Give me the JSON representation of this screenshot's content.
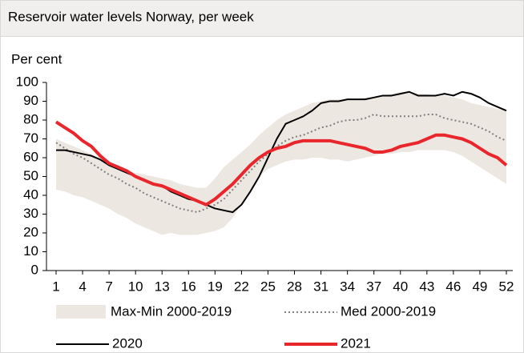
{
  "chart_data": {
    "type": "line",
    "title": "Reservoir water levels Norway, per week",
    "y_label": "Per cent",
    "x": [
      1,
      2,
      3,
      4,
      5,
      6,
      7,
      8,
      9,
      10,
      11,
      12,
      13,
      14,
      15,
      16,
      17,
      18,
      19,
      20,
      21,
      22,
      23,
      24,
      25,
      26,
      27,
      28,
      29,
      30,
      31,
      32,
      33,
      34,
      35,
      36,
      37,
      38,
      39,
      40,
      41,
      42,
      43,
      44,
      45,
      46,
      47,
      48,
      49,
      50,
      51,
      52
    ],
    "xlim": [
      1,
      52
    ],
    "xticks": [
      1,
      4,
      7,
      10,
      13,
      16,
      19,
      22,
      25,
      28,
      31,
      34,
      37,
      40,
      43,
      46,
      49,
      52
    ],
    "ylim": [
      0,
      100
    ],
    "yticks": [
      0,
      10,
      20,
      30,
      40,
      50,
      60,
      70,
      80,
      90,
      100
    ],
    "band": {
      "name": "Max-Min 2000-2019",
      "color": "#ede7e1",
      "max": [
        70,
        68,
        66,
        64,
        62,
        59,
        57,
        55,
        53,
        52,
        51,
        50,
        49,
        48,
        46,
        45,
        44,
        44,
        49,
        55,
        59,
        63,
        67,
        72,
        76,
        80,
        83,
        85,
        87,
        89,
        90,
        91,
        91,
        91,
        91,
        92,
        92,
        93,
        94,
        95,
        95,
        94,
        94,
        93,
        93,
        92,
        91,
        89,
        88,
        87,
        86,
        85
      ],
      "min": [
        43,
        42,
        40,
        39,
        37,
        35,
        33,
        30,
        28,
        25,
        23,
        21,
        19,
        20,
        19,
        19,
        19,
        20,
        21,
        23,
        28,
        35,
        42,
        50,
        54,
        56,
        58,
        59,
        59,
        60,
        60,
        59,
        59,
        58,
        59,
        60,
        61,
        62,
        62,
        63,
        63,
        64,
        64,
        64,
        64,
        63,
        61,
        58,
        55,
        52,
        49,
        46
      ]
    },
    "series": [
      {
        "name": "Med 2000-2019",
        "color": "#7f7f7f",
        "dash": "dotted",
        "values": [
          68,
          65,
          62,
          60,
          57,
          54,
          51,
          49,
          46,
          44,
          41,
          39,
          37,
          35,
          33,
          32,
          31,
          33,
          35,
          38,
          43,
          48,
          53,
          58,
          62,
          66,
          69,
          71,
          72,
          74,
          76,
          77,
          79,
          80,
          80,
          81,
          83,
          82,
          82,
          82,
          82,
          82,
          83,
          83,
          81,
          80,
          79,
          78,
          76,
          74,
          71,
          69
        ]
      },
      {
        "name": "2020",
        "color": "#000000",
        "values": [
          64,
          64,
          63,
          62,
          61,
          59,
          56,
          54,
          52,
          50,
          48,
          46,
          45,
          42,
          40,
          38,
          37,
          35,
          33,
          32,
          31,
          35,
          42,
          50,
          60,
          70,
          78,
          80,
          82,
          85,
          89,
          90,
          90,
          91,
          91,
          91,
          92,
          93,
          93,
          94,
          95,
          93,
          93,
          93,
          94,
          93,
          95,
          94,
          92,
          89,
          87,
          85
        ]
      },
      {
        "name": "2021",
        "color": "#e8262b",
        "values": [
          79,
          76,
          73,
          69,
          66,
          61,
          57,
          55,
          53,
          50,
          48,
          46,
          45,
          43,
          41,
          39,
          37,
          35,
          38,
          42,
          46,
          51,
          56,
          60,
          63,
          65,
          66,
          68,
          69,
          69,
          69,
          69,
          68,
          67,
          66,
          65,
          63,
          63,
          64,
          66,
          67,
          68,
          70,
          72,
          72,
          71,
          70,
          68,
          65,
          62,
          60,
          56
        ]
      }
    ]
  }
}
